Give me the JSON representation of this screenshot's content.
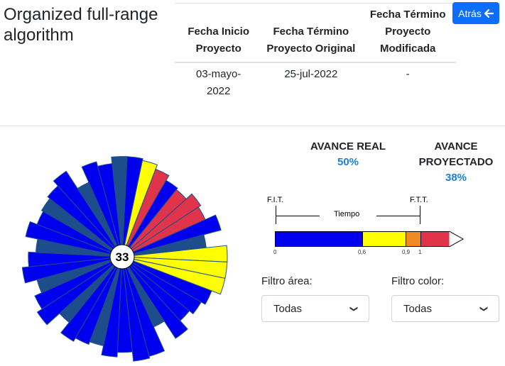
{
  "header": {
    "title": "Organized full-range algorithm",
    "back_label": "Atrás"
  },
  "dates_table": {
    "columns": [
      "Fecha Inicio Proyecto",
      "Fecha Término Proyecto Original",
      "Fecha Término Proyecto Modificada"
    ],
    "row": [
      "03-mayo-2022",
      "25-jul-2022",
      "-"
    ]
  },
  "chart_data": {
    "type": "polar-bar",
    "center_label": "33",
    "note": "radial sector chart; each sector value is relative radius (0-1)",
    "colors": {
      "blue": "#0000ee",
      "navy": "#1e4d8c",
      "yellow": "#ffff00",
      "red": "#e0344a",
      "dark": "#163d72"
    },
    "sectors": [
      {
        "value": 0.95,
        "color": "#0000ee"
      },
      {
        "value": 0.93,
        "color": "#ffff00"
      },
      {
        "value": 0.88,
        "color": "#e0344a"
      },
      {
        "value": 0.82,
        "color": "#0000ee"
      },
      {
        "value": 0.8,
        "color": "#e0344a"
      },
      {
        "value": 0.88,
        "color": "#e0344a"
      },
      {
        "value": 0.85,
        "color": "#e0344a"
      },
      {
        "value": 0.97,
        "color": "#0000ee"
      },
      {
        "value": 0.78,
        "color": "#1e4d8c"
      },
      {
        "value": 1.0,
        "color": "#ffff00"
      },
      {
        "value": 1.0,
        "color": "#ffff00"
      },
      {
        "value": 1.0,
        "color": "#ffff00"
      },
      {
        "value": 0.9,
        "color": "#0000ee"
      },
      {
        "value": 0.85,
        "color": "#0000ee"
      },
      {
        "value": 0.8,
        "color": "#0000ee"
      },
      {
        "value": 0.92,
        "color": "#0000ee"
      },
      {
        "value": 0.7,
        "color": "#1e4d8c"
      },
      {
        "value": 0.98,
        "color": "#0000ee"
      },
      {
        "value": 1.0,
        "color": "#0000ee"
      },
      {
        "value": 0.9,
        "color": "#0000ee"
      },
      {
        "value": 0.95,
        "color": "#0000ee"
      },
      {
        "value": 0.85,
        "color": "#1e4d8c"
      },
      {
        "value": 0.88,
        "color": "#0000ee"
      },
      {
        "value": 0.92,
        "color": "#0000ee"
      },
      {
        "value": 0.78,
        "color": "#1e4d8c"
      },
      {
        "value": 0.96,
        "color": "#0000ee"
      },
      {
        "value": 0.9,
        "color": "#0000ee"
      },
      {
        "value": 0.82,
        "color": "#1e4d8c"
      },
      {
        "value": 0.95,
        "color": "#0000ee"
      },
      {
        "value": 0.88,
        "color": "#0000ee"
      },
      {
        "value": 0.8,
        "color": "#1e4d8c"
      },
      {
        "value": 0.93,
        "color": "#0000ee"
      },
      {
        "value": 0.85,
        "color": "#0000ee"
      },
      {
        "value": 0.87,
        "color": "#1e4d8c"
      },
      {
        "value": 0.9,
        "color": "#0000ee"
      },
      {
        "value": 0.97,
        "color": "#0000ee"
      },
      {
        "value": 0.75,
        "color": "#1e4d8c"
      },
      {
        "value": 0.93,
        "color": "#0000ee"
      },
      {
        "value": 0.88,
        "color": "#0000ee"
      },
      {
        "value": 0.95,
        "color": "#1e4d8c"
      }
    ]
  },
  "progress": {
    "real_label": "AVANCE REAL",
    "real_value": "50%",
    "projected_label": "AVANCE PROYECTADO",
    "projected_value": "38%"
  },
  "timeline": {
    "fit_label": "F.I.T.",
    "ftt_label": "F.T.T.",
    "tiempo_label": "Tiempo",
    "ticks": [
      "0",
      "0,6",
      "0,9",
      "1"
    ],
    "segments": [
      {
        "fraction": 0.6,
        "color": "#0000ee"
      },
      {
        "fraction": 0.3,
        "color": "#ffff00"
      },
      {
        "fraction": 0.1,
        "color": "#f08a24"
      },
      {
        "fraction": 0.2,
        "color": "#e0344a"
      }
    ]
  },
  "filters": {
    "area_label": "Filtro área:",
    "area_value": "Todas",
    "color_label": "Filtro color:",
    "color_value": "Todas"
  }
}
